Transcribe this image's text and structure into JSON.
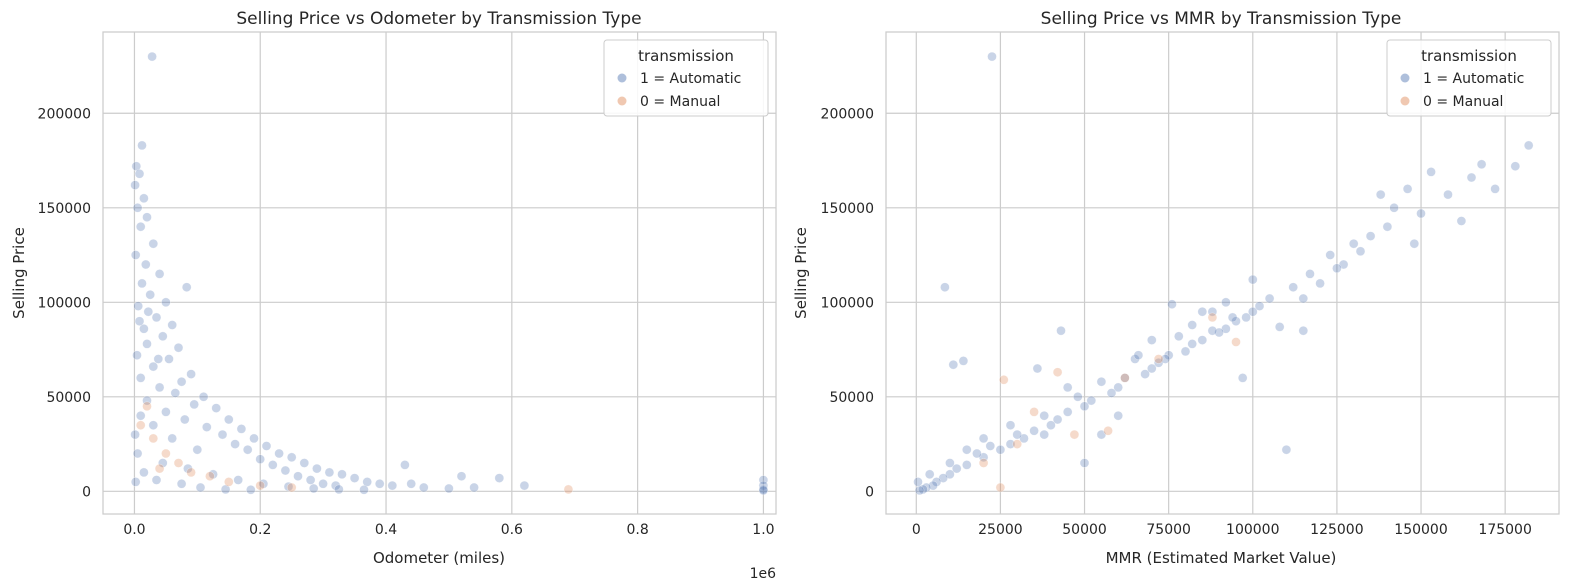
{
  "style": {
    "automatic_color": "#4c72b0",
    "manual_color": "#dd8452",
    "grid_color": "#cccccc",
    "spine_color": "#cccccc",
    "point_alpha": 0.3
  },
  "chart_data": [
    {
      "type": "scatter",
      "title": "Selling Price vs Odometer by Transmission Type",
      "xlabel": "Odometer (miles)",
      "ylabel": "Selling Price",
      "x_offset_label": "1e6",
      "xlim": [
        -0.05,
        1.02
      ],
      "ylim": [
        -12000,
        243000
      ],
      "xticks": [
        0.0,
        0.2,
        0.4,
        0.6,
        0.8,
        1.0
      ],
      "xtick_labels": [
        "0.0",
        "0.2",
        "0.4",
        "0.6",
        "0.8",
        "1.0"
      ],
      "yticks": [
        0,
        50000,
        100000,
        150000,
        200000
      ],
      "ytick_labels": [
        "0",
        "50000",
        "100000",
        "150000",
        "200000"
      ],
      "grid": true,
      "legend": {
        "title": "transmission",
        "placement": "top-right",
        "entries": [
          {
            "label": "1 = Automatic",
            "series": "automatic"
          },
          {
            "label": "0 = Manual",
            "series": "manual"
          }
        ]
      },
      "series": [
        {
          "name": "1 = Automatic",
          "key": "automatic",
          "points": [
            [
              0.028,
              230000
            ],
            [
              0.012,
              183000
            ],
            [
              0.003,
              172000
            ],
            [
              0.008,
              168000
            ],
            [
              0.001,
              162000
            ],
            [
              0.015,
              155000
            ],
            [
              0.005,
              150000
            ],
            [
              0.02,
              145000
            ],
            [
              0.01,
              140000
            ],
            [
              0.03,
              131000
            ],
            [
              0.002,
              125000
            ],
            [
              0.018,
              120000
            ],
            [
              0.04,
              115000
            ],
            [
              0.083,
              108000
            ],
            [
              0.012,
              110000
            ],
            [
              0.025,
              104000
            ],
            [
              0.05,
              100000
            ],
            [
              0.006,
              98000
            ],
            [
              0.035,
              92000
            ],
            [
              0.06,
              88000
            ],
            [
              0.015,
              86000
            ],
            [
              0.045,
              82000
            ],
            [
              0.07,
              76000
            ],
            [
              0.02,
              78000
            ],
            [
              0.004,
              72000
            ],
            [
              0.055,
              70000
            ],
            [
              0.09,
              62000
            ],
            [
              0.03,
              66000
            ],
            [
              0.01,
              60000
            ],
            [
              0.075,
              58000
            ],
            [
              0.11,
              50000
            ],
            [
              0.04,
              55000
            ],
            [
              0.065,
              52000
            ],
            [
              0.13,
              44000
            ],
            [
              0.02,
              48000
            ],
            [
              0.095,
              46000
            ],
            [
              0.15,
              38000
            ],
            [
              0.05,
              42000
            ],
            [
              0.17,
              33000
            ],
            [
              0.08,
              38000
            ],
            [
              0.19,
              28000
            ],
            [
              0.115,
              34000
            ],
            [
              0.21,
              24000
            ],
            [
              0.14,
              30000
            ],
            [
              0.23,
              20000
            ],
            [
              0.16,
              25000
            ],
            [
              0.25,
              18000
            ],
            [
              0.18,
              22000
            ],
            [
              0.27,
              15000
            ],
            [
              0.2,
              17000
            ],
            [
              0.29,
              12000
            ],
            [
              0.22,
              14000
            ],
            [
              0.31,
              10000
            ],
            [
              0.24,
              11000
            ],
            [
              0.33,
              9000
            ],
            [
              0.26,
              8000
            ],
            [
              0.35,
              7000
            ],
            [
              0.28,
              6000
            ],
            [
              0.37,
              5000
            ],
            [
              0.3,
              4000
            ],
            [
              0.39,
              4000
            ],
            [
              0.32,
              3000
            ],
            [
              0.41,
              3000
            ],
            [
              0.43,
              14000
            ],
            [
              0.44,
              4000
            ],
            [
              0.46,
              2000
            ],
            [
              0.5,
              1500
            ],
            [
              0.52,
              8000
            ],
            [
              0.54,
              2000
            ],
            [
              0.58,
              7000
            ],
            [
              0.62,
              3000
            ],
            [
              1.0,
              6000
            ],
            [
              1.0,
              3000
            ],
            [
              1.0,
              1000
            ],
            [
              1.0,
              500
            ],
            [
              0.01,
              40000
            ],
            [
              0.03,
              35000
            ],
            [
              0.06,
              28000
            ],
            [
              0.1,
              22000
            ],
            [
              0.005,
              20000
            ],
            [
              0.045,
              15000
            ],
            [
              0.085,
              12000
            ],
            [
              0.125,
              9000
            ],
            [
              0.165,
              6000
            ],
            [
              0.205,
              4000
            ],
            [
              0.245,
              2500
            ],
            [
              0.285,
              1500
            ],
            [
              0.325,
              1000
            ],
            [
              0.365,
              800
            ],
            [
              0.015,
              10000
            ],
            [
              0.035,
              6000
            ],
            [
              0.075,
              4000
            ],
            [
              0.105,
              2000
            ],
            [
              0.145,
              1000
            ],
            [
              0.185,
              800
            ],
            [
              0.002,
              5000
            ],
            [
              0.001,
              30000
            ],
            [
              0.008,
              90000
            ],
            [
              0.022,
              95000
            ],
            [
              0.038,
              70000
            ]
          ]
        },
        {
          "name": "0 = Manual",
          "key": "manual",
          "points": [
            [
              0.01,
              35000
            ],
            [
              0.03,
              28000
            ],
            [
              0.05,
              20000
            ],
            [
              0.07,
              15000
            ],
            [
              0.09,
              10000
            ],
            [
              0.12,
              8000
            ],
            [
              0.15,
              5000
            ],
            [
              0.2,
              3000
            ],
            [
              0.25,
              2000
            ],
            [
              0.69,
              1000
            ],
            [
              0.02,
              45000
            ],
            [
              0.04,
              12000
            ]
          ]
        }
      ]
    },
    {
      "type": "scatter",
      "title": "Selling Price vs MMR by Transmission Type",
      "xlabel": "MMR (Estimated Market Value)",
      "ylabel": "Selling Price",
      "xlim": [
        -9000,
        191000
      ],
      "ylim": [
        -12000,
        243000
      ],
      "xticks": [
        0,
        25000,
        50000,
        75000,
        100000,
        125000,
        150000,
        175000
      ],
      "xtick_labels": [
        "0",
        "25000",
        "50000",
        "75000",
        "100000",
        "125000",
        "150000",
        "175000"
      ],
      "yticks": [
        0,
        50000,
        100000,
        150000,
        200000
      ],
      "ytick_labels": [
        "0",
        "50000",
        "100000",
        "150000",
        "200000"
      ],
      "grid": true,
      "legend": {
        "title": "transmission",
        "placement": "top-right",
        "entries": [
          {
            "label": "1 = Automatic",
            "series": "automatic"
          },
          {
            "label": "0 = Manual",
            "series": "manual"
          }
        ]
      },
      "series": [
        {
          "name": "1 = Automatic",
          "key": "automatic",
          "points": [
            [
              22500,
              230000
            ],
            [
              182000,
              183000
            ],
            [
              178000,
              172000
            ],
            [
              172000,
              160000
            ],
            [
              168000,
              173000
            ],
            [
              165000,
              166000
            ],
            [
              162000,
              143000
            ],
            [
              158000,
              157000
            ],
            [
              153000,
              169000
            ],
            [
              150000,
              147000
            ],
            [
              148000,
              131000
            ],
            [
              146000,
              160000
            ],
            [
              142000,
              150000
            ],
            [
              140000,
              140000
            ],
            [
              138000,
              157000
            ],
            [
              135000,
              135000
            ],
            [
              132000,
              127000
            ],
            [
              130000,
              131000
            ],
            [
              127000,
              120000
            ],
            [
              125000,
              118000
            ],
            [
              123000,
              125000
            ],
            [
              120000,
              110000
            ],
            [
              117000,
              115000
            ],
            [
              115000,
              102000
            ],
            [
              112000,
              108000
            ],
            [
              110000,
              22000
            ],
            [
              108000,
              87000
            ],
            [
              105000,
              102000
            ],
            [
              102000,
              98000
            ],
            [
              100000,
              95000
            ],
            [
              98000,
              92000
            ],
            [
              95000,
              90000
            ],
            [
              92000,
              86000
            ],
            [
              90000,
              84000
            ],
            [
              88000,
              95000
            ],
            [
              85000,
              80000
            ],
            [
              82000,
              78000
            ],
            [
              80000,
              74000
            ],
            [
              78000,
              82000
            ],
            [
              76000,
              99000
            ],
            [
              75000,
              72000
            ],
            [
              72000,
              68000
            ],
            [
              70000,
              65000
            ],
            [
              68000,
              62000
            ],
            [
              65000,
              70000
            ],
            [
              62000,
              60000
            ],
            [
              60000,
              55000
            ],
            [
              58000,
              52000
            ],
            [
              55000,
              58000
            ],
            [
              52000,
              48000
            ],
            [
              50000,
              45000
            ],
            [
              48000,
              50000
            ],
            [
              45000,
              42000
            ],
            [
              43000,
              85000
            ],
            [
              42000,
              38000
            ],
            [
              40000,
              35000
            ],
            [
              38000,
              40000
            ],
            [
              36000,
              65000
            ],
            [
              35000,
              32000
            ],
            [
              32000,
              28000
            ],
            [
              30000,
              30000
            ],
            [
              28000,
              25000
            ],
            [
              25000,
              22000
            ],
            [
              22000,
              24000
            ],
            [
              20000,
              18000
            ],
            [
              18000,
              20000
            ],
            [
              15000,
              14000
            ],
            [
              14000,
              69000
            ],
            [
              12000,
              12000
            ],
            [
              11000,
              67000
            ],
            [
              10000,
              9000
            ],
            [
              8500,
              108000
            ],
            [
              8000,
              7000
            ],
            [
              6000,
              5000
            ],
            [
              5000,
              3000
            ],
            [
              3000,
              2000
            ],
            [
              2000,
              1000
            ],
            [
              1000,
              500
            ],
            [
              500,
              5000
            ],
            [
              4000,
              9000
            ],
            [
              97000,
              60000
            ],
            [
              115000,
              85000
            ],
            [
              50000,
              15000
            ],
            [
              55000,
              30000
            ],
            [
              60000,
              40000
            ],
            [
              70000,
              80000
            ],
            [
              85000,
              95000
            ],
            [
              92000,
              100000
            ],
            [
              100000,
              112000
            ],
            [
              45000,
              55000
            ],
            [
              38000,
              30000
            ],
            [
              28000,
              35000
            ],
            [
              20000,
              28000
            ],
            [
              15000,
              22000
            ],
            [
              10000,
              15000
            ],
            [
              66000,
              72000
            ],
            [
              74000,
              70000
            ],
            [
              82000,
              88000
            ],
            [
              88000,
              85000
            ],
            [
              94000,
              92000
            ]
          ]
        },
        {
          "name": "0 = Manual",
          "key": "manual",
          "points": [
            [
              26000,
              59000
            ],
            [
              42000,
              63000
            ],
            [
              25000,
              2000
            ],
            [
              30000,
              25000
            ],
            [
              47000,
              30000
            ],
            [
              57000,
              32000
            ],
            [
              62000,
              60000
            ],
            [
              72000,
              70000
            ],
            [
              95000,
              79000
            ],
            [
              88000,
              92000
            ],
            [
              35000,
              42000
            ],
            [
              20000,
              15000
            ]
          ]
        }
      ]
    }
  ]
}
